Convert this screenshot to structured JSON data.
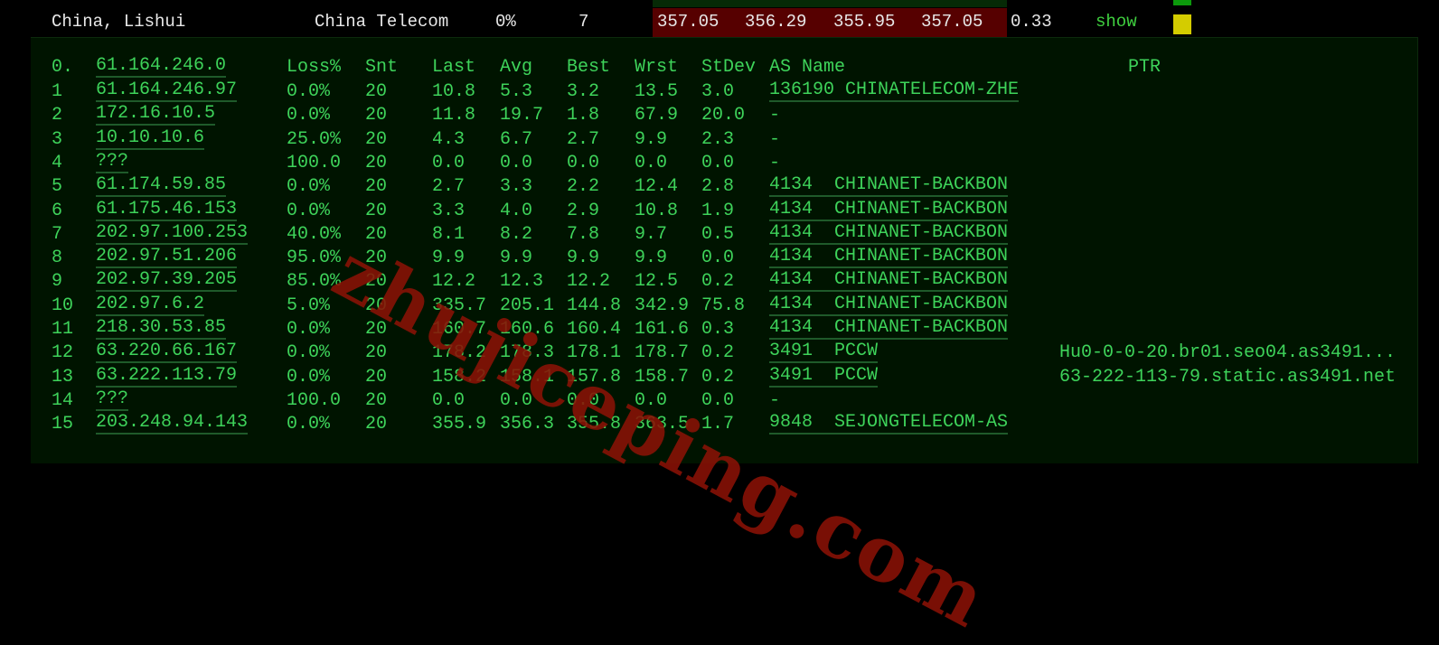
{
  "summary": {
    "location": "China, Lishui",
    "isp": "China Telecom",
    "loss": "0%",
    "sent": "7",
    "last": "357.05",
    "avg": "356.29",
    "best": "355.95",
    "worst": "357.05",
    "stdev": "0.33",
    "show_label": "show",
    "status_color": "#d4cc00"
  },
  "mtr": {
    "headers": {
      "hop": "0.",
      "host": "61.164.246.0",
      "loss": "Loss%",
      "snt": "Snt",
      "last": "Last",
      "avg": "Avg",
      "best": "Best",
      "wrst": "Wrst",
      "stdev": "StDev",
      "as": "AS Name",
      "ptr": "PTR"
    },
    "rows": [
      {
        "hop": "1",
        "host": "61.164.246.97",
        "loss": "0.0%",
        "snt": "20",
        "last": "10.8",
        "avg": "5.3",
        "best": "3.2",
        "wrst": "13.5",
        "stdev": "3.0",
        "as": "136190 CHINATELECOM-ZHE",
        "ptr": ""
      },
      {
        "hop": "2",
        "host": "172.16.10.5",
        "loss": "0.0%",
        "snt": "20",
        "last": "11.8",
        "avg": "19.7",
        "best": "1.8",
        "wrst": "67.9",
        "stdev": "20.0",
        "as": "-",
        "ptr": ""
      },
      {
        "hop": "3",
        "host": "10.10.10.6",
        "loss": "25.0%",
        "snt": "20",
        "last": "4.3",
        "avg": "6.7",
        "best": "2.7",
        "wrst": "9.9",
        "stdev": "2.3",
        "as": "-",
        "ptr": ""
      },
      {
        "hop": "4",
        "host": "???",
        "loss": "100.0",
        "snt": "20",
        "last": "0.0",
        "avg": "0.0",
        "best": "0.0",
        "wrst": "0.0",
        "stdev": "0.0",
        "as": "-",
        "ptr": ""
      },
      {
        "hop": "5",
        "host": "61.174.59.85",
        "loss": "0.0%",
        "snt": "20",
        "last": "2.7",
        "avg": "3.3",
        "best": "2.2",
        "wrst": "12.4",
        "stdev": "2.8",
        "as": "4134  CHINANET-BACKBON",
        "ptr": ""
      },
      {
        "hop": "6",
        "host": "61.175.46.153",
        "loss": "0.0%",
        "snt": "20",
        "last": "3.3",
        "avg": "4.0",
        "best": "2.9",
        "wrst": "10.8",
        "stdev": "1.9",
        "as": "4134  CHINANET-BACKBON",
        "ptr": ""
      },
      {
        "hop": "7",
        "host": "202.97.100.253",
        "loss": "40.0%",
        "snt": "20",
        "last": "8.1",
        "avg": "8.2",
        "best": "7.8",
        "wrst": "9.7",
        "stdev": "0.5",
        "as": "4134  CHINANET-BACKBON",
        "ptr": ""
      },
      {
        "hop": "8",
        "host": "202.97.51.206",
        "loss": "95.0%",
        "snt": "20",
        "last": "9.9",
        "avg": "9.9",
        "best": "9.9",
        "wrst": "9.9",
        "stdev": "0.0",
        "as": "4134  CHINANET-BACKBON",
        "ptr": ""
      },
      {
        "hop": "9",
        "host": "202.97.39.205",
        "loss": "85.0%",
        "snt": "20",
        "last": "12.2",
        "avg": "12.3",
        "best": "12.2",
        "wrst": "12.5",
        "stdev": "0.2",
        "as": "4134  CHINANET-BACKBON",
        "ptr": ""
      },
      {
        "hop": "10",
        "host": "202.97.6.2",
        "loss": "5.0%",
        "snt": "20",
        "last": "335.7",
        "avg": "205.1",
        "best": "144.8",
        "wrst": "342.9",
        "stdev": "75.8",
        "as": "4134  CHINANET-BACKBON",
        "ptr": ""
      },
      {
        "hop": "11",
        "host": "218.30.53.85",
        "loss": "0.0%",
        "snt": "20",
        "last": "160.7",
        "avg": "160.6",
        "best": "160.4",
        "wrst": "161.6",
        "stdev": "0.3",
        "as": "4134  CHINANET-BACKBON",
        "ptr": ""
      },
      {
        "hop": "12",
        "host": "63.220.66.167",
        "loss": "0.0%",
        "snt": "20",
        "last": "178.2",
        "avg": "178.3",
        "best": "178.1",
        "wrst": "178.7",
        "stdev": "0.2",
        "as": "3491  PCCW",
        "ptr": "Hu0-0-0-20.br01.seo04.as3491..."
      },
      {
        "hop": "13",
        "host": "63.222.113.79",
        "loss": "0.0%",
        "snt": "20",
        "last": "158.2",
        "avg": "158.1",
        "best": "157.8",
        "wrst": "158.7",
        "stdev": "0.2",
        "as": "3491  PCCW",
        "ptr": "63-222-113-79.static.as3491.net"
      },
      {
        "hop": "14",
        "host": "???",
        "loss": "100.0",
        "snt": "20",
        "last": "0.0",
        "avg": "0.0",
        "best": "0.0",
        "wrst": "0.0",
        "stdev": "0.0",
        "as": "-",
        "ptr": ""
      },
      {
        "hop": "15",
        "host": "203.248.94.143",
        "loss": "0.0%",
        "snt": "20",
        "last": "355.9",
        "avg": "356.3",
        "best": "355.8",
        "wrst": "363.5",
        "stdev": "1.7",
        "as": "9848  SEJONGTELECOM-AS",
        "ptr": ""
      }
    ]
  },
  "watermark": "zhujiceping.com"
}
